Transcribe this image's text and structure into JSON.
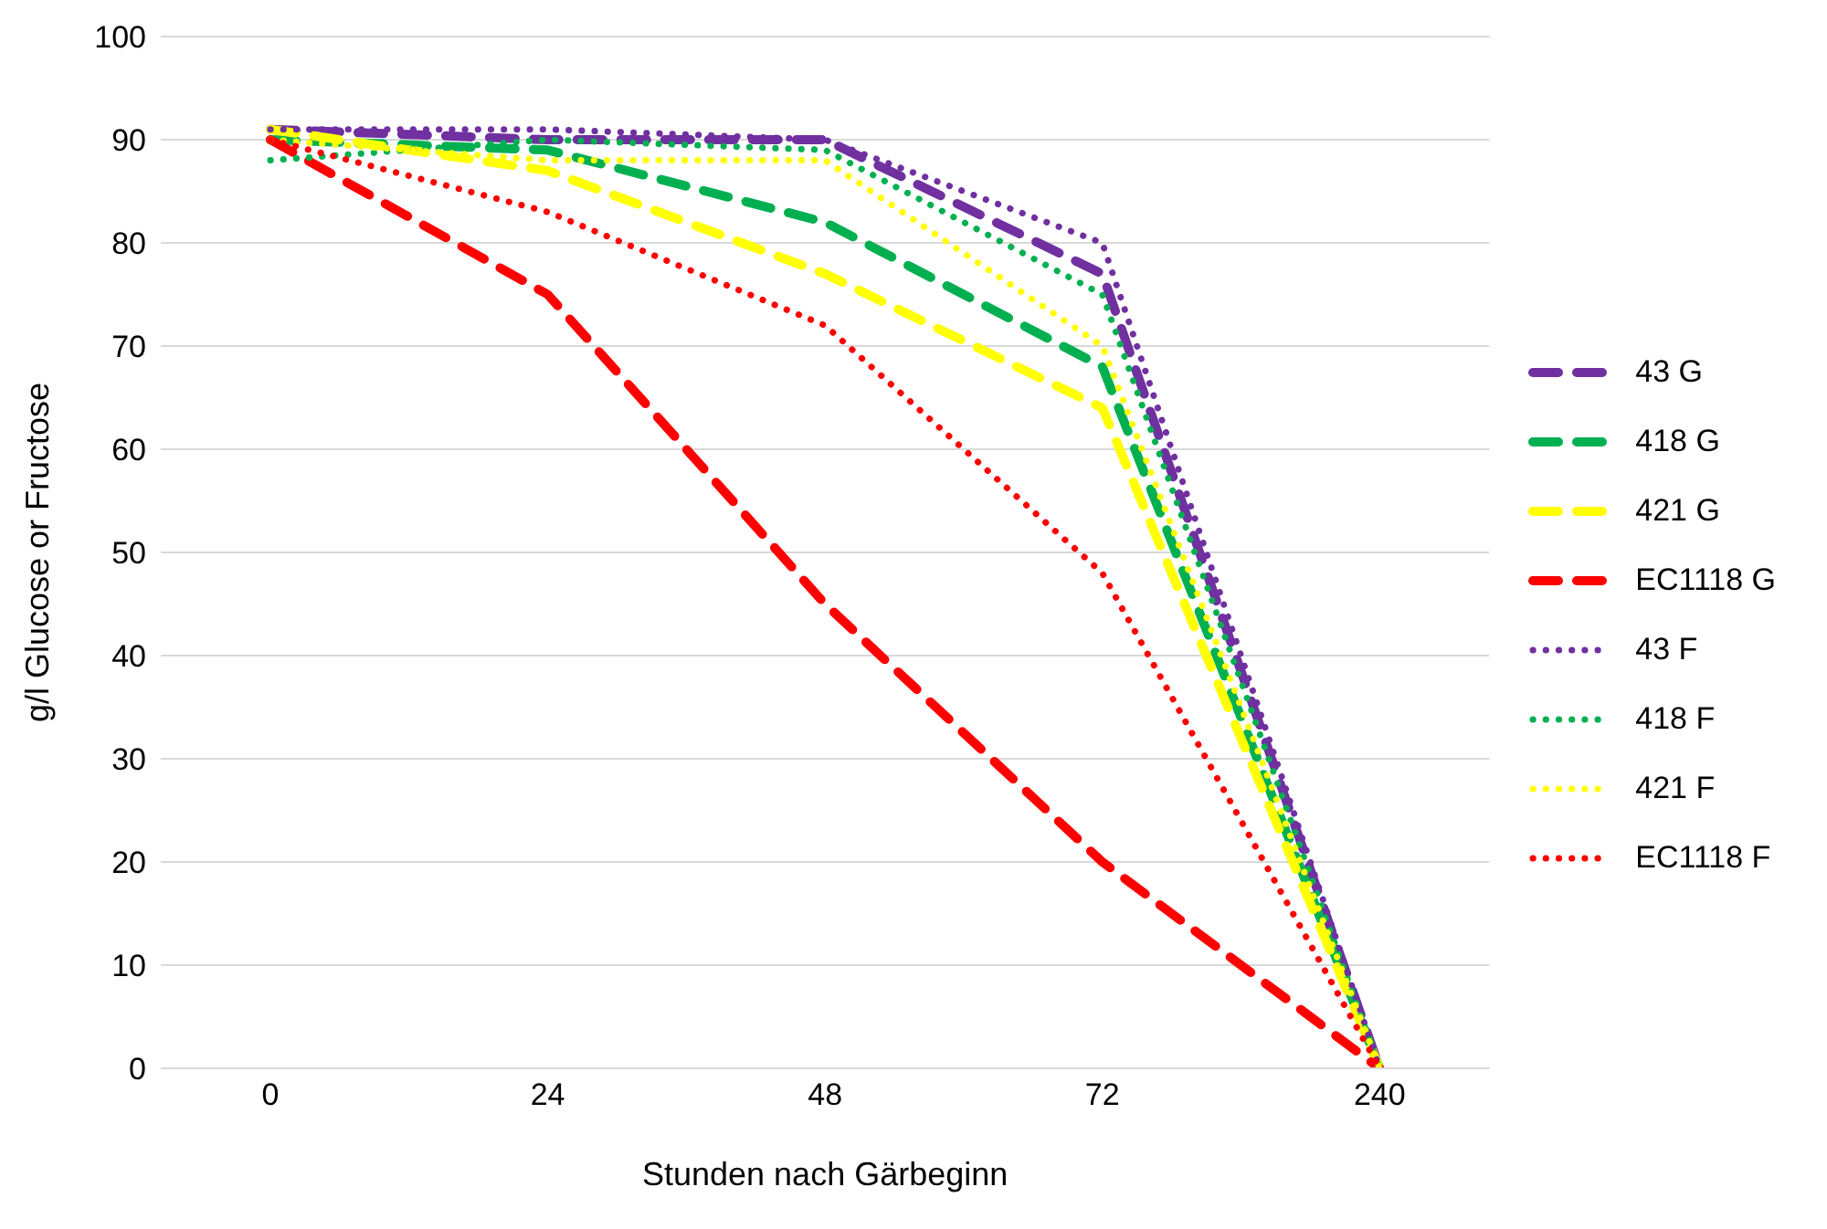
{
  "chart_data": {
    "type": "line",
    "xlabel": "Stunden nach Gärbeginn",
    "ylabel": "g/l Glucose or Fructose",
    "categories": [
      "0",
      "24",
      "48",
      "72",
      "240"
    ],
    "ylim": [
      0,
      100
    ],
    "yticks": [
      0,
      10,
      20,
      30,
      40,
      50,
      60,
      70,
      80,
      90,
      100
    ],
    "grid": "y",
    "legend": "right",
    "marker": "none",
    "series": [
      {
        "name": "43 G",
        "color": "#7030a0",
        "line_style": "dashed",
        "values": [
          91,
          90,
          90,
          77,
          0
        ]
      },
      {
        "name": "418 G",
        "color": "#00b050",
        "line_style": "dashed",
        "values": [
          90,
          89,
          82,
          68,
          0
        ]
      },
      {
        "name": "421 G",
        "color": "#ffff00",
        "line_style": "dashed",
        "values": [
          91,
          87,
          77,
          64,
          0
        ]
      },
      {
        "name": "EC1118 G",
        "color": "#ff0000",
        "line_style": "dashed",
        "values": [
          90,
          75,
          45,
          20,
          0
        ]
      },
      {
        "name": "43 F",
        "color": "#7030a0",
        "line_style": "dotted",
        "values": [
          91,
          91,
          90,
          80,
          0
        ]
      },
      {
        "name": "418 F",
        "color": "#00b050",
        "line_style": "dotted",
        "values": [
          88,
          90,
          89,
          75,
          0
        ]
      },
      {
        "name": "421 F",
        "color": "#ffff00",
        "line_style": "dotted",
        "values": [
          90,
          88,
          88,
          70,
          0
        ]
      },
      {
        "name": "EC1118 F",
        "color": "#ff0000",
        "line_style": "dotted",
        "values": [
          90,
          83,
          72,
          48,
          0
        ]
      }
    ]
  }
}
